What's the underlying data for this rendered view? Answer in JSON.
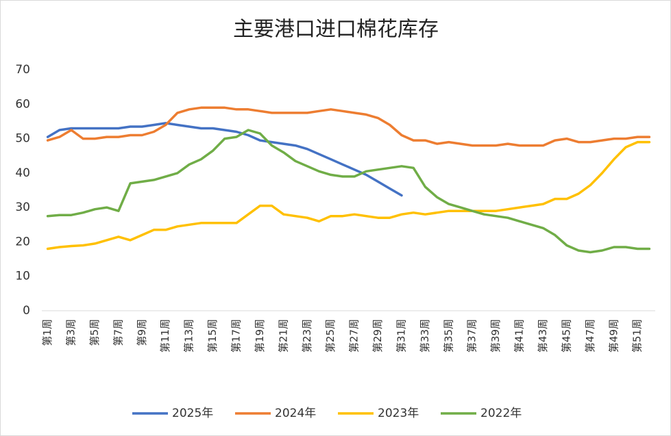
{
  "chart_data": {
    "type": "line",
    "title": "主要港口进口棉花库存",
    "categories": [
      "第1周",
      null,
      "第3周",
      null,
      "第5周",
      null,
      "第7周",
      null,
      "第9周",
      null,
      "第11周",
      null,
      "第13周",
      null,
      "第15周",
      null,
      "第17周",
      null,
      "第19周",
      null,
      "第21周",
      null,
      "第23周",
      null,
      "第25周",
      null,
      "第27周",
      null,
      "第29周",
      null,
      "第31周",
      null,
      "第33周",
      null,
      "第35周",
      null,
      "第37周",
      null,
      "第39周",
      null,
      "第41周",
      null,
      "第43周",
      null,
      "第45周",
      null,
      "第47周",
      null,
      "第49周",
      null,
      "第51周",
      null
    ],
    "ylim": [
      0,
      70
    ],
    "yticks": [
      0,
      10,
      20,
      30,
      40,
      50,
      60,
      70
    ],
    "grid": false,
    "legend": "bottom",
    "series": [
      {
        "name": "2025年",
        "color": "#4472c4",
        "values": [
          50.5,
          52.5,
          53,
          53,
          53,
          53,
          53,
          53.5,
          53.5,
          54,
          54.5,
          54,
          53.5,
          53,
          53,
          52.5,
          52,
          51,
          49.5,
          49,
          48.5,
          48,
          47,
          45.5,
          44,
          42.5,
          41,
          39.5,
          37.5,
          35.5,
          33.5,
          null,
          null,
          null,
          null,
          null,
          null,
          null,
          null,
          null,
          null,
          null,
          null,
          null,
          null,
          null,
          null,
          null,
          null,
          null,
          null,
          null
        ]
      },
      {
        "name": "2024年",
        "color": "#ed7d31",
        "values": [
          49.5,
          50.5,
          52.5,
          50,
          50,
          50.5,
          50.5,
          51,
          51,
          52,
          54,
          57.5,
          58.5,
          59,
          59,
          59,
          58.5,
          58.5,
          58,
          57.5,
          57.5,
          57.5,
          57.5,
          58,
          58.5,
          58,
          57.5,
          57,
          56,
          54,
          51,
          49.5,
          49.5,
          48.5,
          49,
          48.5,
          48,
          48,
          48,
          48.5,
          48,
          48,
          48,
          49.5,
          50,
          49,
          49,
          49.5,
          50,
          50,
          50.5,
          50.5
        ]
      },
      {
        "name": "2023年",
        "color": "#ffc000",
        "values": [
          18,
          18.5,
          18.8,
          19,
          19.5,
          20.5,
          21.5,
          20.5,
          22,
          23.5,
          23.5,
          24.5,
          25,
          25.5,
          25.5,
          25.5,
          25.5,
          28,
          30.5,
          30.5,
          28,
          27.5,
          27,
          26,
          27.5,
          27.5,
          28,
          27.5,
          27,
          27,
          28,
          28.5,
          28,
          28.5,
          29,
          29,
          29,
          29,
          29,
          29.5,
          30,
          30.5,
          31,
          32.5,
          32.5,
          34,
          36.5,
          40,
          44,
          47.5,
          49,
          49
        ]
      },
      {
        "name": "2022年",
        "color": "#70ad47",
        "values": [
          27.5,
          27.8,
          27.8,
          28.5,
          29.5,
          30,
          29,
          37,
          37.5,
          38,
          39,
          40,
          42.5,
          44,
          46.5,
          50,
          50.5,
          52.5,
          51.5,
          48,
          46,
          43.5,
          42,
          40.5,
          39.5,
          39,
          39,
          40.5,
          41,
          41.5,
          42,
          41.5,
          36,
          33,
          31,
          30,
          29,
          28,
          27.5,
          27,
          26,
          25,
          24,
          22,
          19,
          17.5,
          17,
          17.5,
          18.5,
          18.5,
          18,
          18
        ]
      }
    ]
  }
}
